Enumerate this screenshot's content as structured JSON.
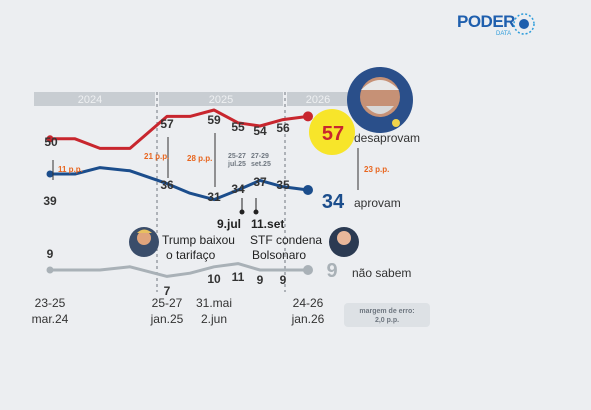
{
  "brand": {
    "name": "PODER",
    "sub": "DATA"
  },
  "years": [
    "2024",
    "2025",
    "2026"
  ],
  "colors": {
    "disapprove": "#c8262e",
    "approve": "#1b4d8c",
    "dontknow": "#a9b1b7",
    "highlight": "#f7e52a",
    "gap": "#e8651e"
  },
  "chart_data": {
    "type": "line",
    "x": [
      "23-25 mar.24",
      "2024-06",
      "2024-09",
      "2024-12",
      "25-27 jan.25",
      "2025-03",
      "31.mai 2.jun",
      "25-27 jul.25",
      "27-29 set.25",
      "2025-12",
      "24-26 jan.26"
    ],
    "series": [
      {
        "name": "desaprovam",
        "values": [
          50,
          50,
          47,
          47,
          57,
          57,
          59,
          55,
          54,
          56,
          57
        ]
      },
      {
        "name": "aprovam",
        "values": [
          39,
          39,
          41,
          40,
          36,
          33,
          31,
          34,
          37,
          35,
          34
        ]
      },
      {
        "name": "não sabem",
        "values": [
          9,
          9,
          9,
          10,
          7,
          8,
          10,
          11,
          9,
          9,
          9
        ]
      }
    ],
    "ylim": [
      0,
      70
    ]
  },
  "labels": {
    "dis_start": "50",
    "dis_jan25": "57",
    "dis_mai": "59",
    "dis_jul": "55",
    "dis_set": "54",
    "dis_dez": "56",
    "dis_end": "57",
    "apr_start": "39",
    "apr_jan25": "36",
    "apr_mai": "31",
    "apr_jul": "34",
    "apr_set": "37",
    "apr_dez": "35",
    "apr_end": "34",
    "nsa_start": "9",
    "nsa_jan25": "7",
    "nsa_mai": "10",
    "nsa_jul": "11",
    "nsa_set": "9",
    "nsa_dez": "9",
    "nsa_end": "9",
    "desaprovam": "desaprovam",
    "aprovam": "aprovam",
    "nao_sabem": "não sabem",
    "gap1": "11 p.p.",
    "gap2": "21 p.p.",
    "gap3": "28 p.p.",
    "gap4": "23 p.p.",
    "date_jul": "25-27",
    "date_jul2": "jul.25",
    "date_set": "27-29",
    "date_set2": "set.25",
    "ev1_date": "9.jul",
    "ev1_line1": "Trump baixou",
    "ev1_line2": "o tarifaço",
    "ev2_date": "11.set",
    "ev2_line1": "STF condena",
    "ev2_line2": "Bolsonaro",
    "x1a": "23-25",
    "x1b": "mar.24",
    "x2a": "25-27",
    "x2b": "jan.25",
    "x3a": "31.mai",
    "x3b": "2.jun",
    "x4a": "24-26",
    "x4b": "jan.26",
    "margin1": "margem de erro:",
    "margin2": "2,0 p.p."
  }
}
